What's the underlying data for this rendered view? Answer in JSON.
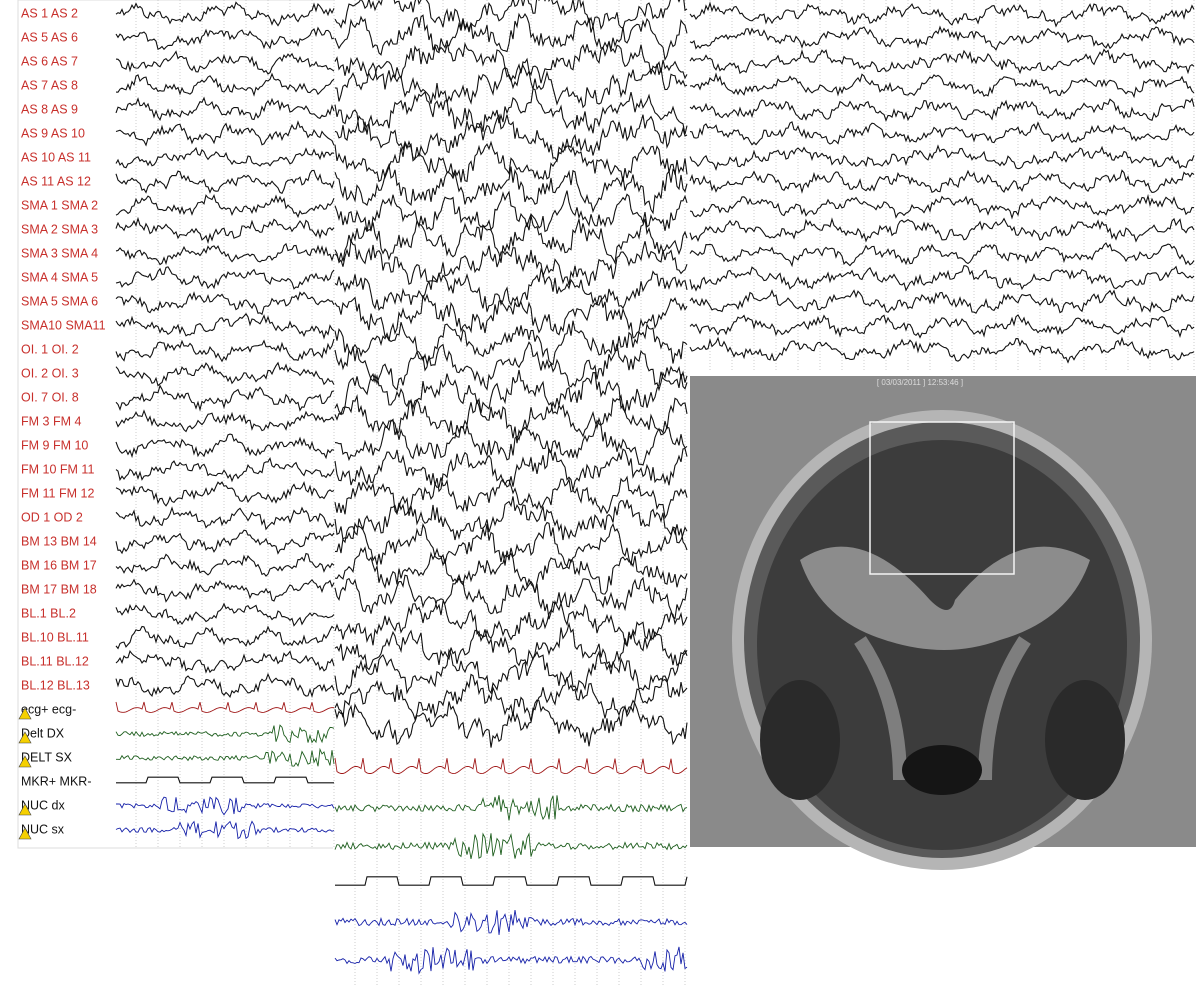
{
  "eeg_channels": [
    "AS  1 AS  2",
    "AS  5 AS  6",
    "AS  6 AS  7",
    "AS  7 AS  8",
    "AS  8 AS  9",
    "AS  9 AS 10",
    "AS 10 AS 11",
    "AS 11 AS 12",
    "SMA 1 SMA 2",
    "SMA 2 SMA 3",
    "SMA 3 SMA 4",
    "SMA 4 SMA 5",
    "SMA 5 SMA 6",
    "SMA10 SMA11",
    "OI. 1 OI. 2",
    "OI. 2 OI. 3",
    "OI. 7 OI. 8",
    "FM 3 FM 4",
    "FM 9 FM 10",
    "FM 10 FM 11",
    "FM 11 FM 12",
    "OD 1 OD 2",
    "BM 13 BM 14",
    "BM 16 BM 17",
    "BM 17 BM 18",
    "BL.1 BL.2",
    "BL.10 BL.11",
    "BL.11 BL.12",
    "BL.12 BL.13"
  ],
  "poly_channels": [
    "ecg+ ecg-",
    "Delt DX",
    "DELT SX",
    "MKR+ MKR-",
    "NUC dx",
    "NUC sx"
  ],
  "mri_timestamp": "[ 03/03/2011 ] 12:53:46 ]"
}
